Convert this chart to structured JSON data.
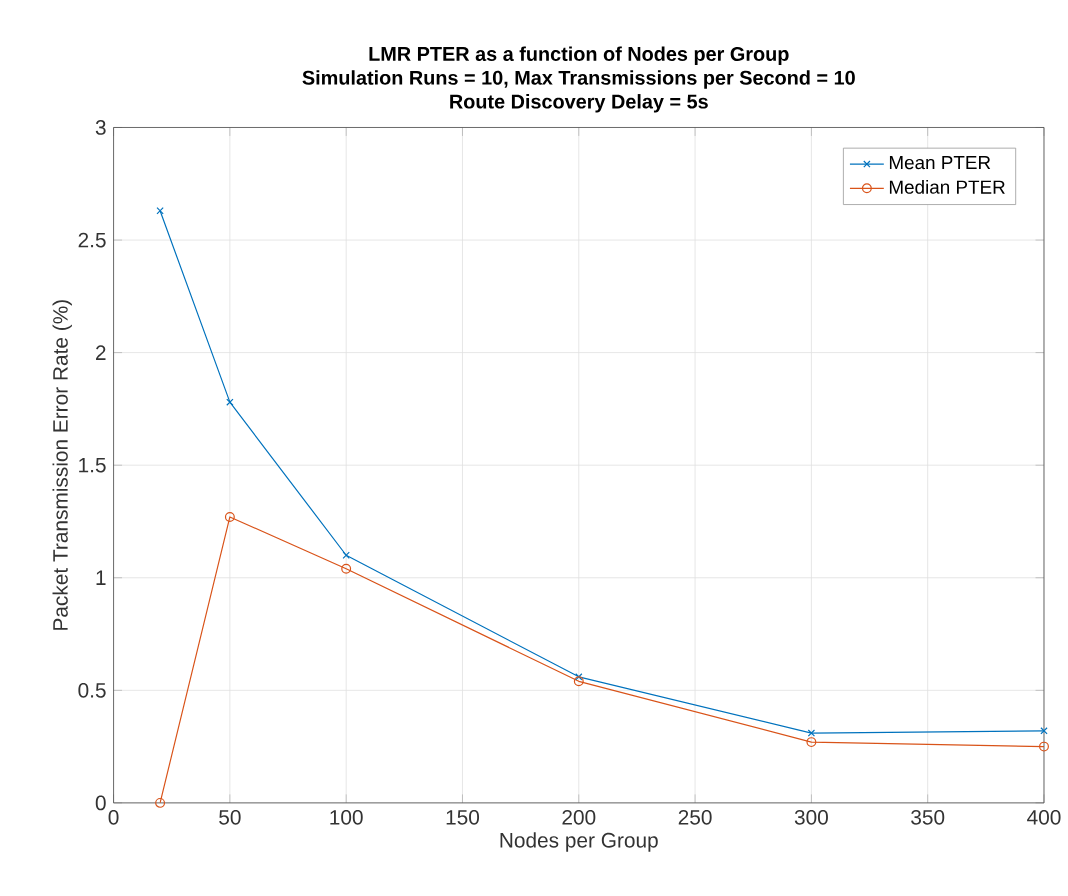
{
  "chart_data": {
    "type": "line",
    "title": "LMR PTER as a function of Nodes per Group",
    "subtitle": "Simulation Runs = 10, Max Transmissions per Second = 10",
    "annotations": [
      "Route Discovery Delay = 5s"
    ],
    "xlabel": "Nodes per Group",
    "ylabel": "Packet Transmission Error Rate (%)",
    "x": [
      20,
      50,
      100,
      200,
      300,
      400
    ],
    "series": [
      {
        "name": "Mean PTER",
        "color": "#0072bd",
        "marker": "cross",
        "values": [
          2.63,
          1.78,
          1.1,
          0.56,
          0.31,
          0.32
        ]
      },
      {
        "name": "Median PTER",
        "color": "#d95319",
        "marker": "circle",
        "values": [
          0,
          1.27,
          1.04,
          0.54,
          0.27,
          0.25
        ]
      }
    ],
    "xlim": [
      0,
      400
    ],
    "xticks": [
      0,
      50,
      100,
      150,
      200,
      250,
      300,
      350,
      400
    ],
    "ylim": [
      0,
      3
    ],
    "yticks": [
      0,
      0.5,
      1,
      1.5,
      2,
      2.5,
      3
    ],
    "grid": true,
    "legend": "top right",
    "line_style": "solid"
  }
}
